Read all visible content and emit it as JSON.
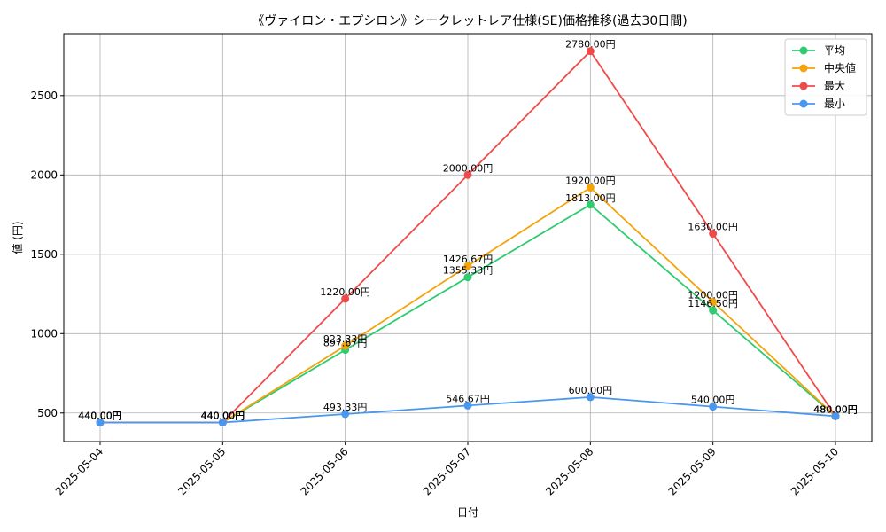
{
  "chart_data": {
    "type": "line",
    "title": "《ヴァイロン・エプシロン》シークレットレア仕様(SE)価格推移(過去30日間)",
    "xlabel": "日付",
    "ylabel": "値 (円)",
    "categories": [
      "2025-05-04",
      "2025-05-05",
      "2025-05-06",
      "2025-05-07",
      "2025-05-08",
      "2025-05-09",
      "2025-05-10"
    ],
    "ylim": [
      320,
      2890
    ],
    "yticks": [
      500,
      1000,
      1500,
      2000,
      2500
    ],
    "grid": true,
    "legend_position": "top-right",
    "label_suffix": "円",
    "series": [
      {
        "name": "平均",
        "color": "#2ecc71",
        "values": [
          440.0,
          440.0,
          897.67,
          1355.33,
          1813.0,
          1146.5,
          480.0
        ]
      },
      {
        "name": "中央値",
        "color": "#f5a30a",
        "values": [
          440.0,
          440.0,
          923.33,
          1426.67,
          1920.0,
          1200.0,
          480.0
        ]
      },
      {
        "name": "最大",
        "color": "#f04b4b",
        "values": [
          440.0,
          440.0,
          1220.0,
          2000.0,
          2780.0,
          1630.0,
          480.0
        ]
      },
      {
        "name": "最小",
        "color": "#4a97f0",
        "values": [
          440.0,
          440.0,
          493.33,
          546.67,
          600.0,
          540.0,
          480.0
        ]
      }
    ]
  }
}
